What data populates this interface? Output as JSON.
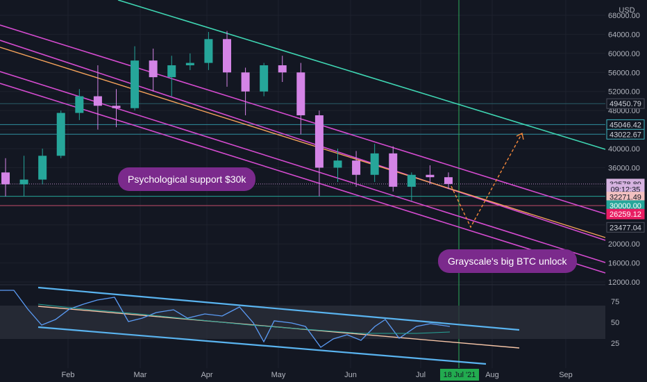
{
  "currency": "USD",
  "annotations": {
    "support": "Psychological support $30k",
    "unlock": "Grayscale's big BTC unlock"
  },
  "colors": {
    "background": "#131722",
    "up_candle": "#26a69a",
    "down_candle": "#d484e6",
    "channel_magenta": "#d54bd0",
    "channel_cyan": "#3fd6b3",
    "median_orange": "#f6a35b",
    "projection_orange": "#f6893b",
    "rsi_channel": "#5ab4f0",
    "rsi_line": "#5b9cf6",
    "vline_green": "#2eab5a",
    "bubble": "#7b2a8c"
  },
  "chart_data": {
    "type": "candlestick",
    "symbol_currency": "USD",
    "xaxis_labels": [
      "Feb",
      "Mar",
      "Apr",
      "May",
      "Jun",
      "Jul",
      "Aug",
      "Sep"
    ],
    "cursor_date_label": "18 Jul '21",
    "yaxis_ticks": [
      12000,
      16000,
      20000,
      24000,
      28000,
      32000,
      36000,
      40000,
      44000,
      48000,
      52000,
      56000,
      60000,
      64000,
      68000
    ],
    "yaxis_tick_labels": [
      "12000.00",
      "16000.00",
      "20000.00",
      "24000.00",
      "28000.00",
      "32000.00",
      "36000.00",
      "40000.00",
      "44000.00",
      "48000.00",
      "52000.00",
      "56000.00",
      "60000.00",
      "64000.00",
      "68000.00"
    ],
    "price_tags": [
      {
        "label": "49450.79",
        "value": 49450.79,
        "bg": "#131722",
        "fg": "#d1d4dc",
        "border": "#4b4f5c"
      },
      {
        "label": "45046.42",
        "value": 45046.42,
        "bg": "#131722",
        "fg": "#d1d4dc",
        "border": "#3fb5c0"
      },
      {
        "label": "43022.67",
        "value": 43022.67,
        "bg": "#131722",
        "fg": "#d1d4dc",
        "border": "#3fb5c0"
      },
      {
        "label": "32578.89",
        "value": 32578.89,
        "bg": "#d6b3e0",
        "fg": "#131722",
        "border": "#d6b3e0"
      },
      {
        "label": "09:12:35",
        "value": 31450,
        "bg": "#d6b3e0",
        "fg": "#131722",
        "border": "#d6b3e0"
      },
      {
        "label": "32271.49",
        "value": 29850,
        "bg": "#f2c0c0",
        "fg": "#131722",
        "border": "#f2c0c0"
      },
      {
        "label": "30000.00",
        "value": 28050,
        "bg": "#26a69a",
        "fg": "#ffffff",
        "border": "#26a69a"
      },
      {
        "label": "26259.12",
        "value": 26259.12,
        "bg": "#e91e63",
        "fg": "#ffffff",
        "border": "#e91e63"
      },
      {
        "label": "23477.04",
        "value": 23477.04,
        "bg": "#131722",
        "fg": "#d1d4dc",
        "border": "#4b4f5c"
      }
    ],
    "rsi_ticks": [
      25,
      50,
      75
    ],
    "rsi_band": [
      30,
      70
    ],
    "candles_weekly_approx": [
      {
        "x": "Jan 20",
        "o": 35000,
        "h": 38000,
        "c": 32500,
        "l": 30000
      },
      {
        "x": "Jan 27",
        "o": 32500,
        "h": 38500,
        "c": 33500,
        "l": 30000
      },
      {
        "x": "Feb 03",
        "o": 33500,
        "h": 40000,
        "c": 38500,
        "l": 32500
      },
      {
        "x": "Feb 10",
        "o": 38500,
        "h": 48000,
        "c": 47500,
        "l": 38000
      },
      {
        "x": "Feb 17",
        "o": 47500,
        "h": 52500,
        "c": 51000,
        "l": 46000
      },
      {
        "x": "Feb 24",
        "o": 51000,
        "h": 57500,
        "c": 49000,
        "l": 44000
      },
      {
        "x": "Mar 03",
        "o": 49000,
        "h": 52500,
        "c": 48500,
        "l": 44500
      },
      {
        "x": "Mar 10",
        "o": 48500,
        "h": 61500,
        "c": 58500,
        "l": 48000
      },
      {
        "x": "Mar 17",
        "o": 58500,
        "h": 61000,
        "c": 55000,
        "l": 52000
      },
      {
        "x": "Mar 24",
        "o": 55000,
        "h": 59500,
        "c": 57500,
        "l": 51000
      },
      {
        "x": "Mar 31",
        "o": 57500,
        "h": 60000,
        "c": 58000,
        "l": 56500
      },
      {
        "x": "Apr 07",
        "o": 58000,
        "h": 64500,
        "c": 63000,
        "l": 56500
      },
      {
        "x": "Apr 14",
        "o": 63000,
        "h": 64700,
        "c": 56000,
        "l": 53000
      },
      {
        "x": "Apr 21",
        "o": 56000,
        "h": 57000,
        "c": 52000,
        "l": 47000
      },
      {
        "x": "Apr 28",
        "o": 52000,
        "h": 58000,
        "c": 57500,
        "l": 51000
      },
      {
        "x": "May 05",
        "o": 57500,
        "h": 59500,
        "c": 56000,
        "l": 54000
      },
      {
        "x": "May 12",
        "o": 56000,
        "h": 58000,
        "c": 47000,
        "l": 43000
      },
      {
        "x": "May 19",
        "o": 47000,
        "h": 48000,
        "c": 36000,
        "l": 30000
      },
      {
        "x": "May 26",
        "o": 36000,
        "h": 40000,
        "c": 37500,
        "l": 33000
      },
      {
        "x": "Jun 02",
        "o": 37500,
        "h": 39500,
        "c": 34500,
        "l": 32000
      },
      {
        "x": "Jun 09",
        "o": 34500,
        "h": 41000,
        "c": 39000,
        "l": 33000
      },
      {
        "x": "Jun 16",
        "o": 39000,
        "h": 40500,
        "c": 32000,
        "l": 31000
      },
      {
        "x": "Jun 23",
        "o": 32000,
        "h": 35000,
        "c": 34500,
        "l": 29000
      },
      {
        "x": "Jun 30",
        "o": 34500,
        "h": 36500,
        "c": 34000,
        "l": 32500
      },
      {
        "x": "Jul 07",
        "o": 34000,
        "h": 35000,
        "c": 32578.89,
        "l": 31500
      }
    ]
  }
}
